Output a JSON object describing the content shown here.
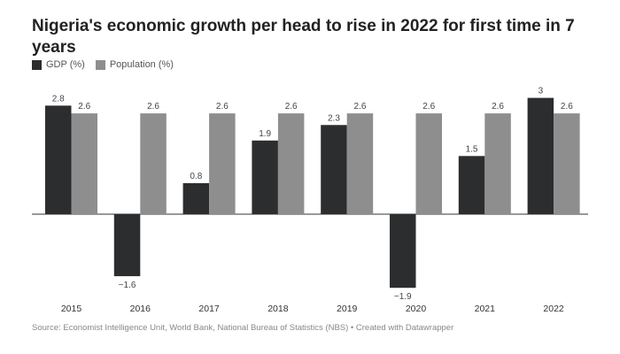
{
  "chart_data": {
    "type": "bar",
    "title": "Nigeria's economic growth per head to rise in 2022 for first time in 7 years",
    "categories": [
      "2015",
      "2016",
      "2017",
      "2018",
      "2019",
      "2020",
      "2021",
      "2022"
    ],
    "series": [
      {
        "name": "GDP (%)",
        "values": [
          2.8,
          -1.6,
          0.8,
          1.9,
          2.3,
          -1.9,
          1.5,
          3
        ],
        "color": "#2b2d2f"
      },
      {
        "name": "Population (%)",
        "values": [
          2.6,
          2.6,
          2.6,
          2.6,
          2.6,
          2.6,
          2.6,
          2.6
        ],
        "color": "#8e8e8e"
      }
    ],
    "value_labels": {
      "GDP (%)": [
        "2.8",
        "−1.6",
        "0.8",
        "1.9",
        "2.3",
        "−1.9",
        "1.5",
        "3"
      ],
      "Population (%)": [
        "2.6",
        "2.6",
        "2.6",
        "2.6",
        "2.6",
        "2.6",
        "2.6",
        "2.6"
      ]
    },
    "xlabel": "",
    "ylabel": "",
    "grid": false,
    "legend": "top-left",
    "source": "Source: Economist Intelligence Unit, World Bank, National Bureau of Statistics (NBS) • Created with Datawrapper"
  }
}
